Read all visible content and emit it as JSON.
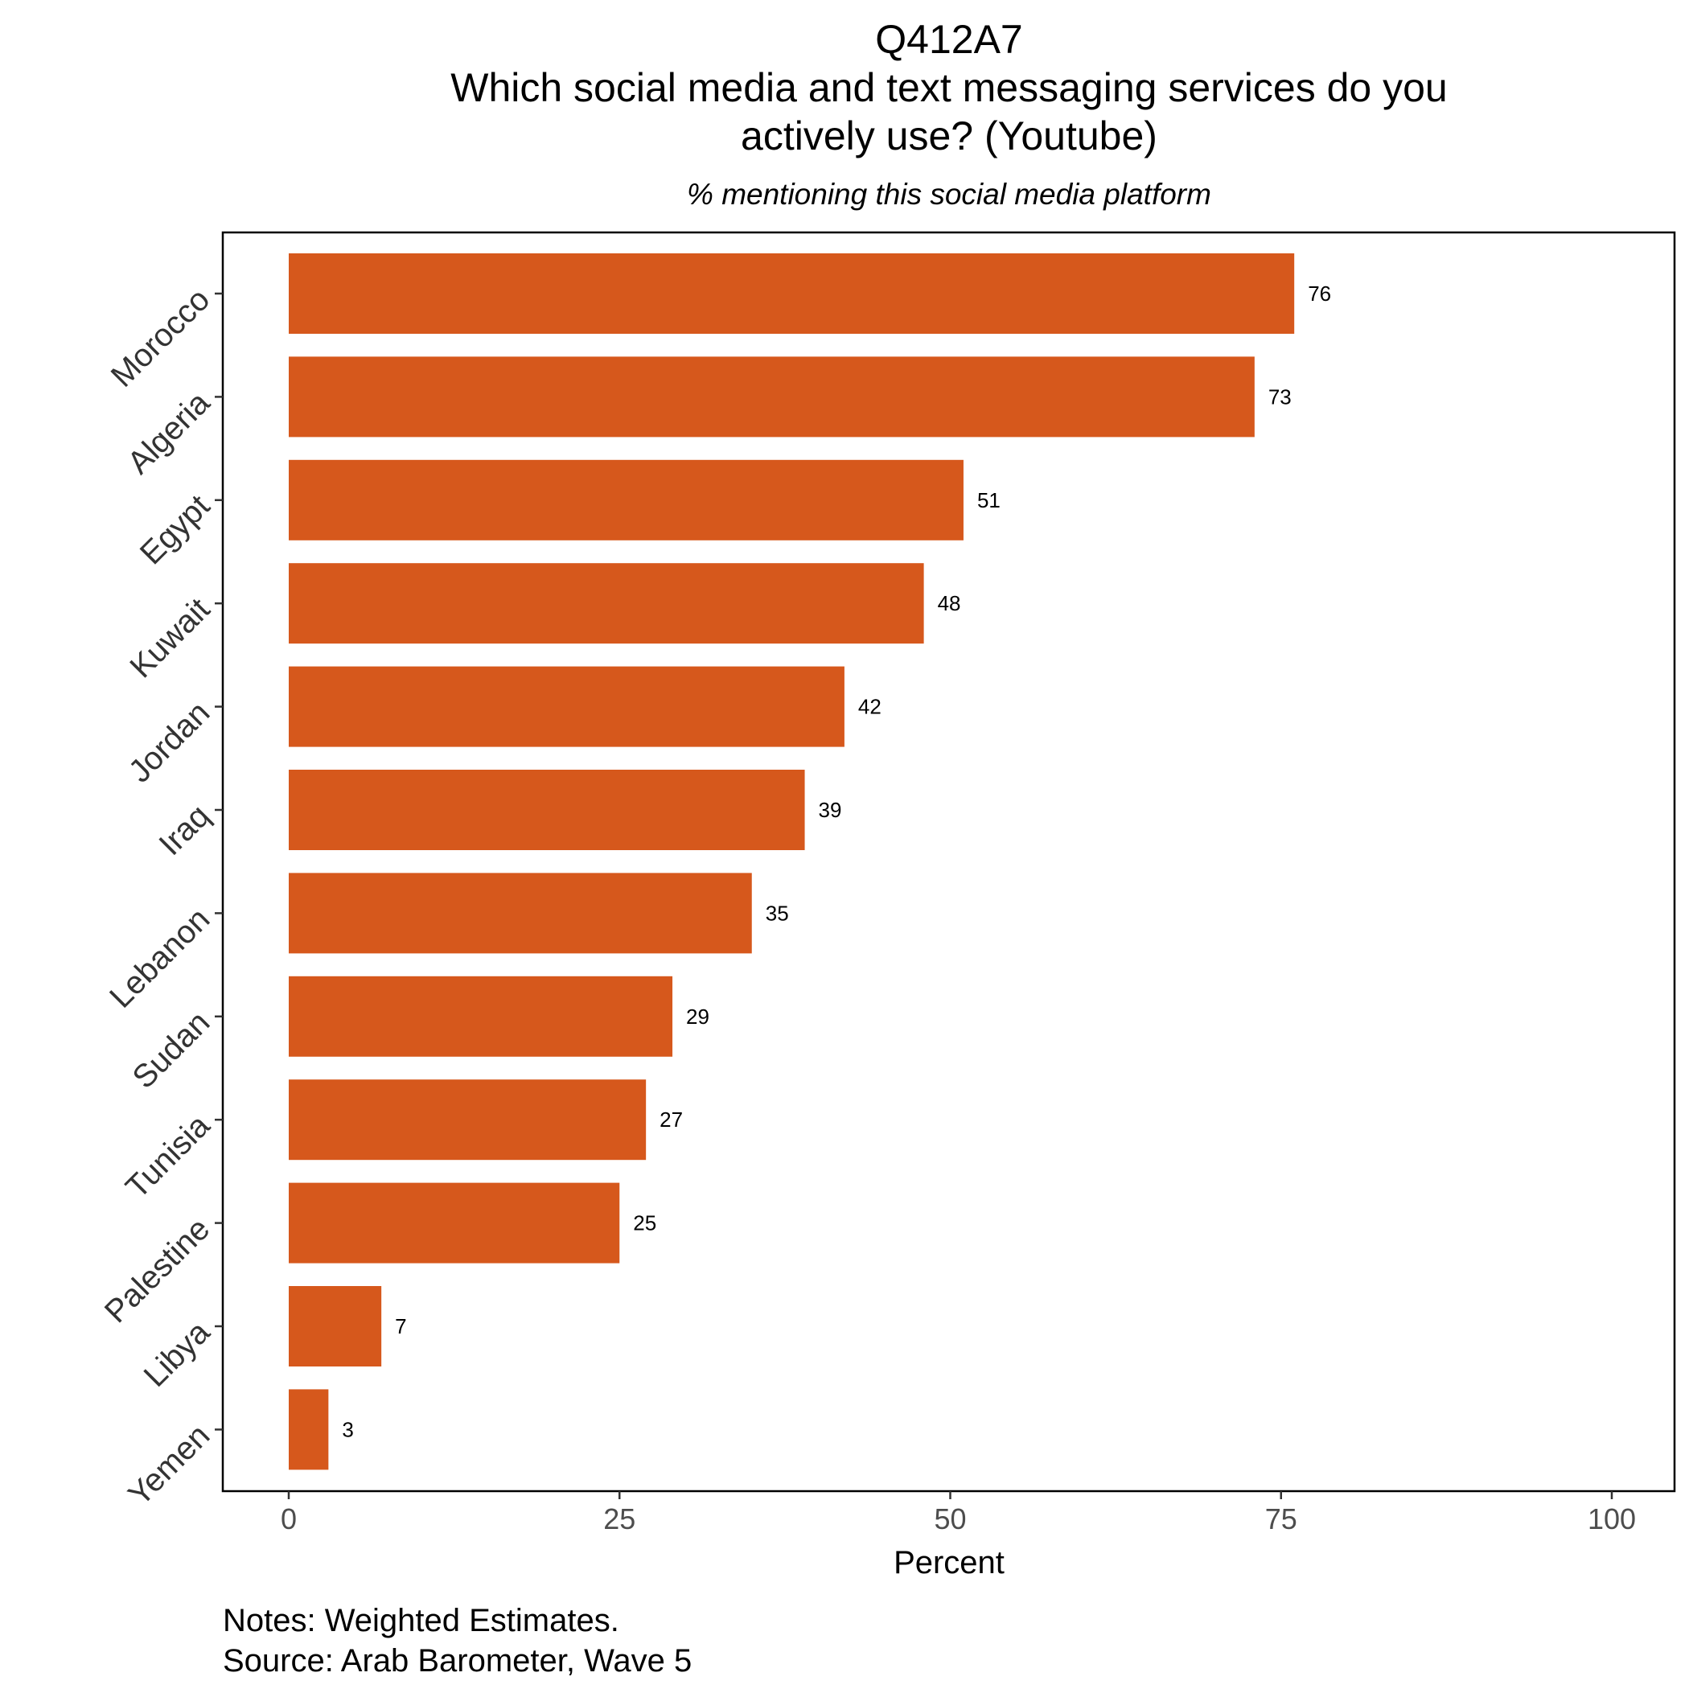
{
  "chart_data": {
    "type": "bar",
    "orientation": "horizontal",
    "title_lines": [
      "Q412A7",
      "Which social media and text messaging services do you",
      "actively use? (Youtube)"
    ],
    "subtitle": "% mentioning this social media platform",
    "xlabel": "Percent",
    "ylabel": "",
    "xlim": [
      0,
      100
    ],
    "x_ticks": [
      0,
      25,
      50,
      75,
      100
    ],
    "x_tick_labels": [
      "0",
      "25",
      "50",
      "75",
      "100"
    ],
    "grid": false,
    "legend": "none",
    "bar_color": "#D6581C",
    "categories": [
      "Morocco",
      "Algeria",
      "Egypt",
      "Kuwait",
      "Jordan",
      "Iraq",
      "Lebanon",
      "Sudan",
      "Tunisia",
      "Palestine",
      "Libya",
      "Yemen"
    ],
    "values": [
      76,
      73,
      51,
      48,
      42,
      39,
      35,
      29,
      27,
      25,
      7,
      3
    ],
    "data_labels": [
      "76",
      "73",
      "51",
      "48",
      "42",
      "39",
      "35",
      "29",
      "27",
      "25",
      "7",
      "3"
    ],
    "caption_lines": [
      "Notes: Weighted Estimates.",
      "Source: Arab Barometer, Wave 5"
    ]
  }
}
